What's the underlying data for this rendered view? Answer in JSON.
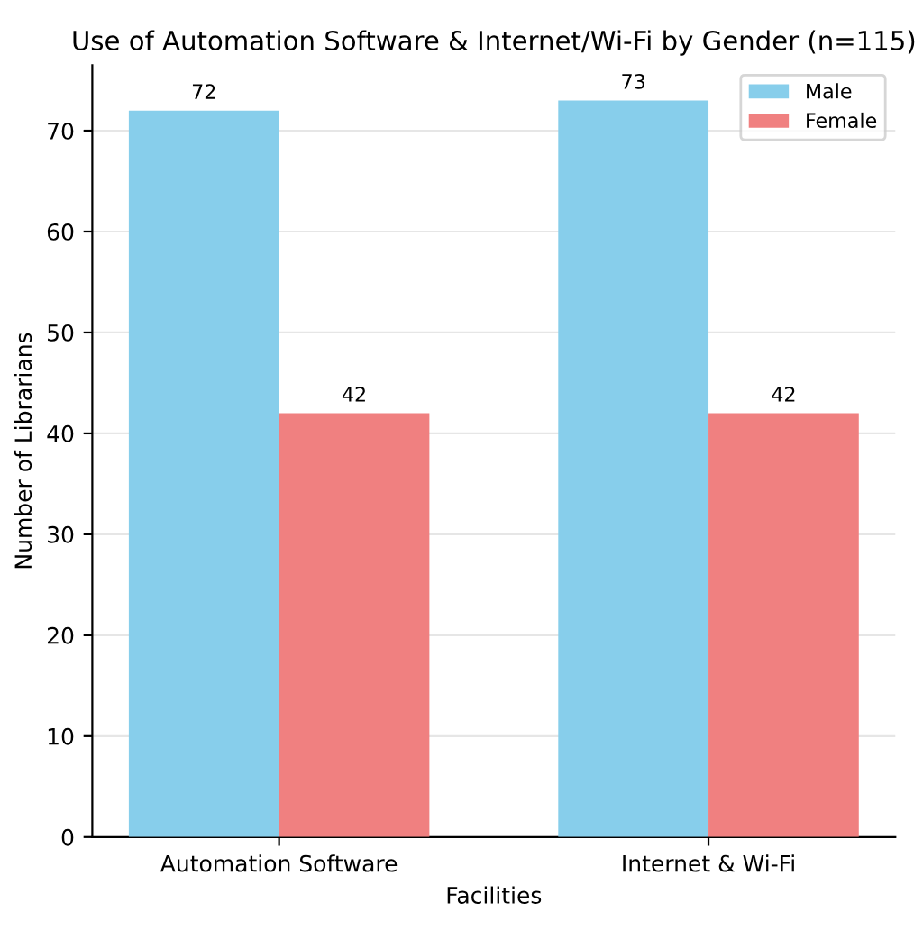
{
  "chart_data": {
    "type": "bar",
    "title": "Use of Automation Software & Internet/Wi-Fi by Gender (n=115)",
    "xlabel": "Facilities",
    "ylabel": "Number of Librarians",
    "categories": [
      "Automation Software",
      "Internet & Wi-Fi"
    ],
    "series": [
      {
        "name": "Male",
        "color": "#87ceeb",
        "values": [
          72,
          73
        ]
      },
      {
        "name": "Female",
        "color": "#f08080",
        "values": [
          42,
          42
        ]
      }
    ],
    "ylim": [
      0,
      76.5
    ],
    "yticks": [
      0,
      10,
      20,
      30,
      40,
      50,
      60,
      70
    ],
    "grid": "y",
    "legend": "top right",
    "data_labels": true
  }
}
